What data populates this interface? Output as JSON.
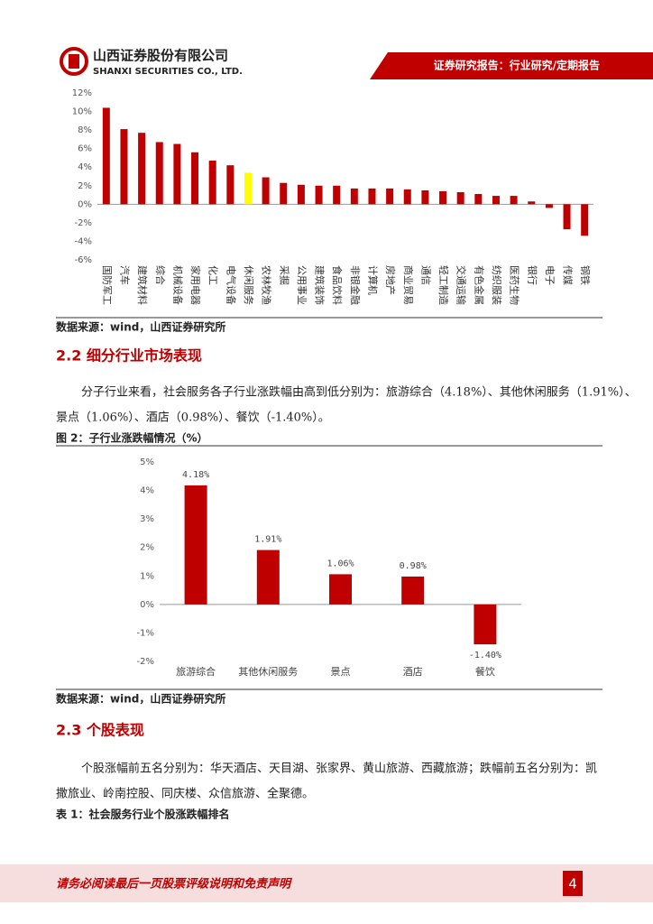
{
  "header": {
    "company": "山西证券股份有限公司",
    "company_en": "SHANXI SECURITIES CO., LTD.",
    "report_type": "证券研究报告：行业研究/定期报告"
  },
  "chart_data": [
    {
      "type": "bar",
      "categories": [
        "国防军工",
        "汽车",
        "建筑材料",
        "综合",
        "机械设备",
        "家用电器",
        "化工",
        "电气设备",
        "休闲服务",
        "农林牧渔",
        "采掘",
        "公用事业",
        "建筑装饰",
        "食品饮料",
        "非银金融",
        "计算机",
        "房地产",
        "商业贸易",
        "通信",
        "轻工制造",
        "交通运输",
        "有色金属",
        "纺织服装",
        "医药生物",
        "银行",
        "电子",
        "传媒",
        "钢铁"
      ],
      "values": [
        10.4,
        8.1,
        7.7,
        6.7,
        6.5,
        5.6,
        4.7,
        4.2,
        3.4,
        2.9,
        2.3,
        2.1,
        2.0,
        2.0,
        1.7,
        1.7,
        1.7,
        1.6,
        1.5,
        1.4,
        1.3,
        1.1,
        0.9,
        0.9,
        0.3,
        -0.4,
        -2.7,
        -3.4
      ],
      "colors": [
        "#c00000",
        "#c00000",
        "#c00000",
        "#c00000",
        "#c00000",
        "#c00000",
        "#c00000",
        "#c00000",
        "#ffff00",
        "#c00000",
        "#c00000",
        "#c00000",
        "#c00000",
        "#c00000",
        "#c00000",
        "#c00000",
        "#c00000",
        "#c00000",
        "#c00000",
        "#c00000",
        "#c00000",
        "#c00000",
        "#c00000",
        "#c00000",
        "#c00000",
        "#c00000",
        "#c00000",
        "#c00000"
      ],
      "ylim": [
        -6,
        12
      ],
      "yticks": [
        {
          "value": 12,
          "label": "12%"
        },
        {
          "value": 10,
          "label": "10%"
        },
        {
          "value": 8,
          "label": "8%"
        },
        {
          "value": 6,
          "label": "6%"
        },
        {
          "value": 4,
          "label": "4%"
        },
        {
          "value": 2,
          "label": "2%"
        },
        {
          "value": 0,
          "label": "0%"
        },
        {
          "value": -2,
          "label": "-2%"
        },
        {
          "value": -4,
          "label": "-4%"
        },
        {
          "value": -6,
          "label": "-6%"
        }
      ]
    },
    {
      "type": "bar",
      "title": "图 2：子行业涨跌幅情况（%）",
      "categories": [
        "旅游综合",
        "其他休闲服务",
        "景点",
        "酒店",
        "餐饮"
      ],
      "values": [
        4.18,
        1.91,
        1.06,
        0.98,
        -1.4
      ],
      "value_labels": [
        "4.18%",
        "1.91%",
        "1.06%",
        "0.98%",
        "-1.40%"
      ],
      "colors": [
        "#c00000",
        "#c00000",
        "#c00000",
        "#c00000",
        "#c00000"
      ],
      "ylim": [
        -2,
        5
      ],
      "yticks": [
        {
          "value": 5,
          "label": "5%"
        },
        {
          "value": 4,
          "label": "4%"
        },
        {
          "value": 3,
          "label": "3%"
        },
        {
          "value": 2,
          "label": "2%"
        },
        {
          "value": 1,
          "label": "1%"
        },
        {
          "value": 0,
          "label": "0%"
        },
        {
          "value": -1,
          "label": "-1%"
        },
        {
          "value": -2,
          "label": "-2%"
        }
      ]
    }
  ],
  "source_1": "数据来源：wind，山西证券研究所",
  "section_2_2": {
    "title": "2.2 细分行业市场表现",
    "lines": [
      "分子行业来看，社会服务各子行业涨跌幅由高到低分别为：旅游综合（4.18%）、其他休闲服务（1.91%）、",
      "景点（1.06%）、酒店（0.98%）、餐饮（-1.40%）。"
    ]
  },
  "source_2": "数据来源：wind，山西证券研究所",
  "section_2_3": {
    "title": "2.3 个股表现",
    "lines": [
      "个股涨幅前五名分别为：华天酒店、天目湖、张家界、黄山旅游、西藏旅游；跌幅前五名分别为：凯",
      "撒旅业、岭南控股、同庆楼、众信旅游、全聚德。"
    ],
    "table_caption": "表 1：社会服务行业个股涨跌幅排名"
  },
  "footer": {
    "disclaimer": "请务必阅读最后一页股票评级说明和免责声明",
    "page": "4"
  }
}
